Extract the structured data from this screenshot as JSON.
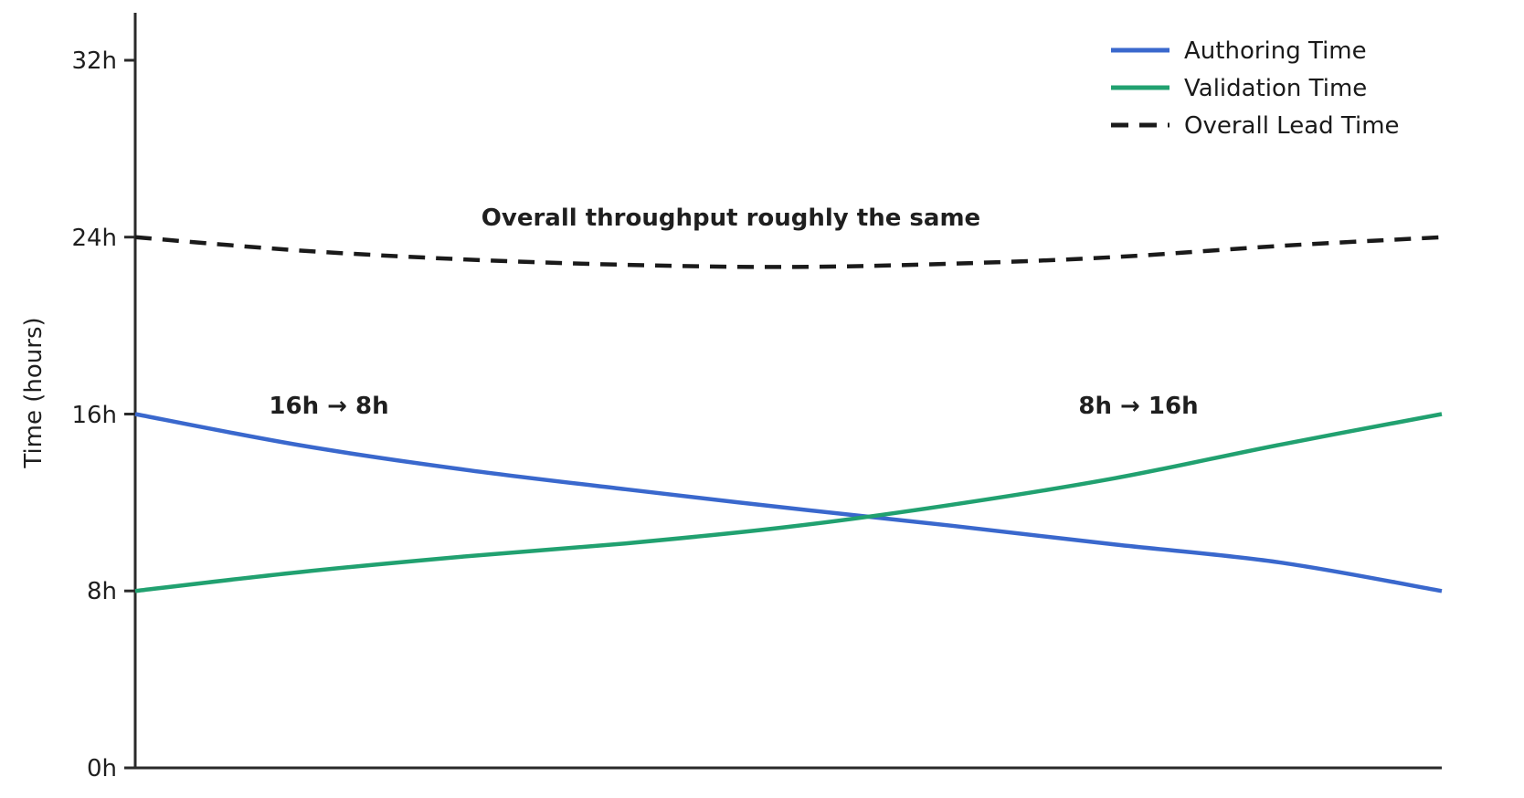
{
  "chart_data": {
    "type": "line",
    "title": "",
    "xlabel": "",
    "ylabel": "Time (hours)",
    "ylim": [
      0,
      34
    ],
    "grid": false,
    "legend_position": "top-right",
    "yticks": [
      {
        "label": "0h",
        "value": 0
      },
      {
        "label": "8h",
        "value": 8
      },
      {
        "label": "16h",
        "value": 16
      },
      {
        "label": "24h",
        "value": 24
      },
      {
        "label": "32h",
        "value": 32
      }
    ],
    "x_progress": [
      0,
      0.125,
      0.25,
      0.375,
      0.5,
      0.625,
      0.75,
      0.875,
      1
    ],
    "series": [
      {
        "name": "Authoring Time",
        "color": "#3a68cd",
        "style": "solid",
        "values": [
          16,
          14.6,
          13.5,
          12.6,
          11.75,
          10.95,
          10.1,
          9.3,
          8
        ]
      },
      {
        "name": "Validation Time",
        "color": "#21a170",
        "style": "solid",
        "values": [
          8,
          8.85,
          9.55,
          10.15,
          10.9,
          11.9,
          13.1,
          14.6,
          16
        ]
      },
      {
        "name": "Overall Lead Time",
        "color": "#1a1a1a",
        "style": "dashed",
        "values": [
          24,
          23.4,
          23.0,
          22.75,
          22.65,
          22.8,
          23.1,
          23.6,
          24
        ]
      }
    ],
    "annotations": [
      {
        "text": "Overall throughput roughly the same",
        "color": "#1a1a1a",
        "x_progress": 0.456,
        "hours": 25.0
      },
      {
        "text": "16h → 8h",
        "color": "#3a68cd",
        "x_progress": 0.148,
        "hours": 16.4
      },
      {
        "text": "8h → 16h",
        "color": "#21a170",
        "x_progress": 0.768,
        "hours": 16.4
      }
    ]
  }
}
